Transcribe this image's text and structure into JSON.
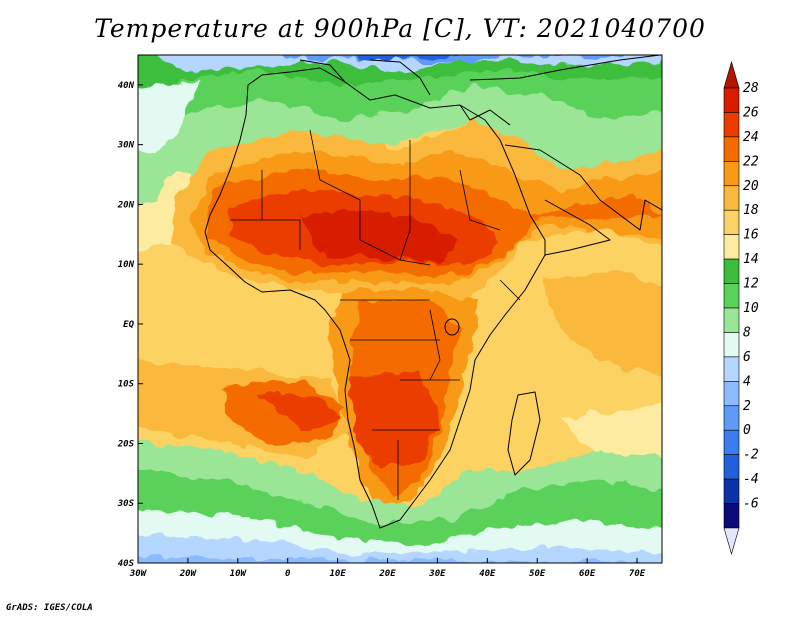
{
  "title": "Temperature at 900hPa [C], VT: 2021040700",
  "credit": "GrADS: IGES/COLA",
  "map": {
    "lon_range": [
      -30,
      75
    ],
    "lat_range": [
      -40,
      45
    ],
    "lon_ticks": [
      {
        "lon": -30,
        "label": "30W"
      },
      {
        "lon": -20,
        "label": "20W"
      },
      {
        "lon": -10,
        "label": "10W"
      },
      {
        "lon": 0,
        "label": "0"
      },
      {
        "lon": 10,
        "label": "10E"
      },
      {
        "lon": 20,
        "label": "20E"
      },
      {
        "lon": 30,
        "label": "30E"
      },
      {
        "lon": 40,
        "label": "40E"
      },
      {
        "lon": 50,
        "label": "50E"
      },
      {
        "lon": 60,
        "label": "60E"
      },
      {
        "lon": 70,
        "label": "70E"
      }
    ],
    "lat_ticks": [
      {
        "lat": 40,
        "label": "40N"
      },
      {
        "lat": 30,
        "label": "30N"
      },
      {
        "lat": 20,
        "label": "20N"
      },
      {
        "lat": 10,
        "label": "10N"
      },
      {
        "lat": 0,
        "label": "EQ"
      },
      {
        "lat": -10,
        "label": "10S"
      },
      {
        "lat": -20,
        "label": "20S"
      },
      {
        "lat": -30,
        "label": "30S"
      },
      {
        "lat": -40,
        "label": "40S"
      }
    ]
  },
  "colorbar": {
    "labels": [
      "28",
      "26",
      "24",
      "22",
      "20",
      "18",
      "16",
      "14",
      "12",
      "10",
      "8",
      "6",
      "4",
      "2",
      "0",
      "-2",
      "-4",
      "-6"
    ],
    "colors_top_to_bottom": [
      "#d81c00",
      "#ec3c00",
      "#f46c00",
      "#f89a16",
      "#fab93c",
      "#fcd264",
      "#fdeca0",
      "#3cbe3c",
      "#5ad25a",
      "#9ae696",
      "#e2faf2",
      "#b4d6ff",
      "#8cbaff",
      "#5e9af6",
      "#3c7ef0",
      "#2060dc",
      "#0c32aa",
      "#0a0a78"
    ],
    "top_arrow_color": "#b41400",
    "bottom_arrow_color": "#e6e6fa"
  }
}
